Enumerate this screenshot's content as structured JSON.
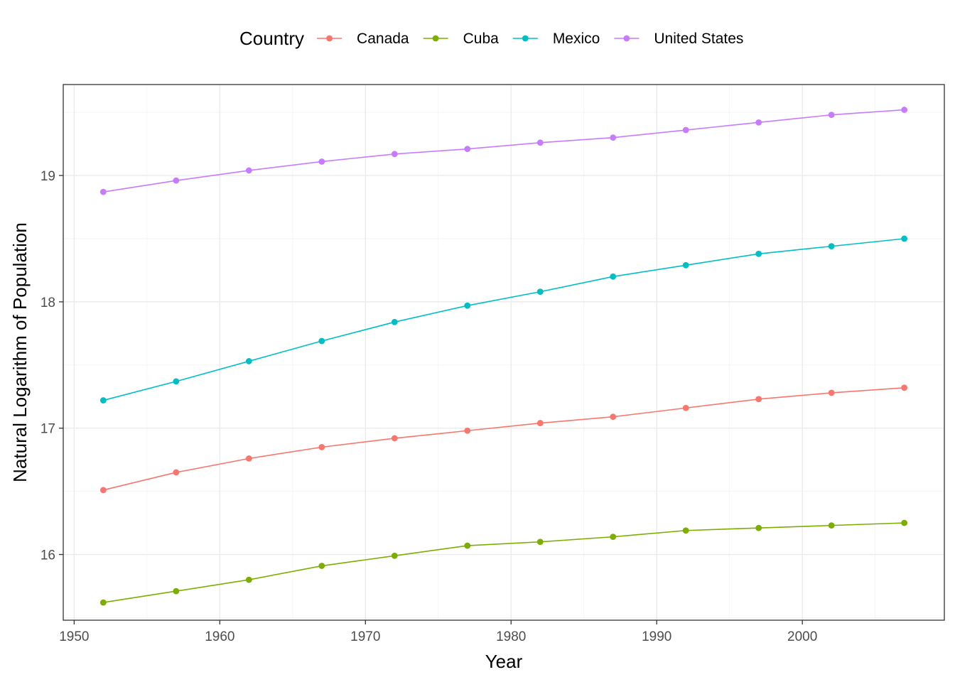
{
  "chart_data": {
    "type": "line",
    "xlabel": "Year",
    "ylabel": "Natural Logarithm of Population",
    "legend_title": "Country",
    "legend_position": "top",
    "grid": true,
    "xlim": [
      1949.25,
      2009.75
    ],
    "ylim": [
      15.48,
      19.72
    ],
    "x_ticks": [
      1950,
      1960,
      1970,
      1980,
      1990,
      2000
    ],
    "y_ticks": [
      16,
      17,
      18,
      19
    ],
    "x": [
      1952,
      1957,
      1962,
      1967,
      1972,
      1977,
      1982,
      1987,
      1992,
      1997,
      2002,
      2007
    ],
    "series": [
      {
        "name": "Canada",
        "color": "#F8766D",
        "values": [
          16.51,
          16.65,
          16.76,
          16.85,
          16.92,
          16.98,
          17.04,
          17.09,
          17.16,
          17.23,
          17.28,
          17.32
        ]
      },
      {
        "name": "Cuba",
        "color": "#7CAE00",
        "values": [
          15.62,
          15.71,
          15.8,
          15.91,
          15.99,
          16.07,
          16.1,
          16.14,
          16.19,
          16.21,
          16.23,
          16.25
        ]
      },
      {
        "name": "Mexico",
        "color": "#00BFC4",
        "values": [
          17.22,
          17.37,
          17.53,
          17.69,
          17.84,
          17.97,
          18.08,
          18.2,
          18.29,
          18.38,
          18.44,
          18.5
        ]
      },
      {
        "name": "United States",
        "color": "#C77CFF",
        "values": [
          18.87,
          18.96,
          19.04,
          19.11,
          19.17,
          19.21,
          19.26,
          19.3,
          19.36,
          19.42,
          19.48,
          19.52
        ]
      }
    ]
  }
}
